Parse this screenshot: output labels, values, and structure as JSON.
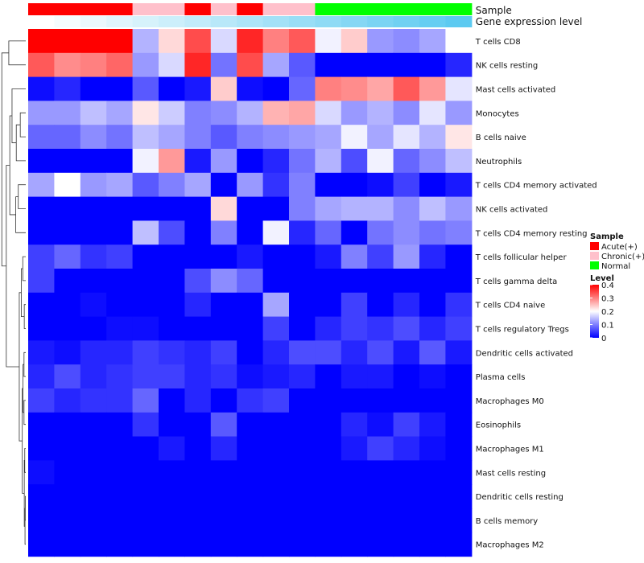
{
  "chart_data": {
    "type": "heatmap",
    "annotations": {
      "sample_label": "Sample",
      "expression_label": "Gene expression level",
      "sample_groups": [
        "Acute(+)",
        "Acute(+)",
        "Acute(+)",
        "Acute(+)",
        "Chronic(+)",
        "Chronic(+)",
        "Acute(+)",
        "Chronic(+)",
        "Acute(+)",
        "Chronic(+)",
        "Chronic(+)",
        "Normal",
        "Normal",
        "Normal",
        "Normal",
        "Normal",
        "Normal"
      ],
      "expression_levels": [
        0.0,
        0.06,
        0.12,
        0.18,
        0.24,
        0.3,
        0.36,
        0.42,
        0.48,
        0.54,
        0.6,
        0.66,
        0.72,
        0.78,
        0.84,
        0.9,
        0.96
      ]
    },
    "rows": [
      "T cells CD8",
      "NK cells resting",
      "Mast cells activated",
      "Monocytes",
      "B cells naive",
      "Neutrophils",
      "T cells CD4 memory activated",
      "NK cells activated",
      "T cells CD4 memory resting",
      "T cells follicular helper",
      "T cells gamma delta",
      "T cells CD4 naive",
      "T cells regulatory  Tregs",
      "Dendritic cells activated",
      "Plasma cells",
      "Macrophages M0",
      "Eosinophils",
      "Macrophages M1",
      "Mast cells resting",
      "Dendritic cells resting",
      "B cells memory",
      "Macrophages M2"
    ],
    "values": [
      [
        0.4,
        0.4,
        0.4,
        0.4,
        0.14,
        0.23,
        0.34,
        0.17,
        0.37,
        0.3,
        0.33,
        0.19,
        0.24,
        0.12,
        0.11,
        0.13,
        0.2
      ],
      [
        0.33,
        0.29,
        0.3,
        0.32,
        0.12,
        0.17,
        0.37,
        0.09,
        0.34,
        0.13,
        0.07,
        0.0,
        0.0,
        0.0,
        0.0,
        0.0,
        0.03
      ],
      [
        0.01,
        0.03,
        0.0,
        0.0,
        0.07,
        0.0,
        0.02,
        0.24,
        0.01,
        0.0,
        0.08,
        0.3,
        0.29,
        0.27,
        0.33,
        0.28,
        0.18
      ],
      [
        0.12,
        0.12,
        0.15,
        0.13,
        0.22,
        0.16,
        0.1,
        0.11,
        0.14,
        0.26,
        0.27,
        0.17,
        0.12,
        0.14,
        0.11,
        0.18,
        0.12
      ],
      [
        0.08,
        0.08,
        0.11,
        0.09,
        0.15,
        0.13,
        0.1,
        0.07,
        0.1,
        0.11,
        0.12,
        0.13,
        0.19,
        0.13,
        0.18,
        0.14,
        0.22
      ],
      [
        0.0,
        0.0,
        0.0,
        0.0,
        0.19,
        0.28,
        0.02,
        0.12,
        0.0,
        0.03,
        0.09,
        0.14,
        0.06,
        0.19,
        0.08,
        0.11,
        0.15
      ],
      [
        0.13,
        0.2,
        0.12,
        0.13,
        0.07,
        0.1,
        0.13,
        0.0,
        0.12,
        0.04,
        0.1,
        0.0,
        0.0,
        0.01,
        0.05,
        0.0,
        0.02
      ],
      [
        0.0,
        0.0,
        0.0,
        0.0,
        0.0,
        0.0,
        0.0,
        0.23,
        0.0,
        0.0,
        0.1,
        0.13,
        0.14,
        0.14,
        0.11,
        0.15,
        0.12
      ],
      [
        0.0,
        0.0,
        0.0,
        0.0,
        0.15,
        0.06,
        0.0,
        0.1,
        0.0,
        0.19,
        0.03,
        0.08,
        0.0,
        0.09,
        0.11,
        0.09,
        0.1
      ],
      [
        0.05,
        0.08,
        0.04,
        0.05,
        0.0,
        0.0,
        0.0,
        0.0,
        0.02,
        0.0,
        0.0,
        0.02,
        0.1,
        0.05,
        0.12,
        0.03,
        0.0
      ],
      [
        0.05,
        0.0,
        0.0,
        0.0,
        0.0,
        0.0,
        0.06,
        0.11,
        0.08,
        0.0,
        0.0,
        0.0,
        0.0,
        0.0,
        0.0,
        0.0,
        0.0
      ],
      [
        0.0,
        0.0,
        0.01,
        0.0,
        0.0,
        0.0,
        0.03,
        0.0,
        0.0,
        0.13,
        0.0,
        0.0,
        0.05,
        0.0,
        0.03,
        0.0,
        0.04
      ],
      [
        0.0,
        0.0,
        0.0,
        0.01,
        0.01,
        0.0,
        0.0,
        0.0,
        0.0,
        0.05,
        0.0,
        0.03,
        0.05,
        0.04,
        0.06,
        0.03,
        0.05
      ],
      [
        0.02,
        0.01,
        0.03,
        0.03,
        0.05,
        0.04,
        0.03,
        0.05,
        0.0,
        0.03,
        0.06,
        0.06,
        0.03,
        0.06,
        0.02,
        0.07,
        0.02
      ],
      [
        0.03,
        0.06,
        0.03,
        0.04,
        0.05,
        0.05,
        0.03,
        0.04,
        0.01,
        0.02,
        0.03,
        0.0,
        0.02,
        0.02,
        0.0,
        0.01,
        0.0
      ],
      [
        0.05,
        0.03,
        0.04,
        0.04,
        0.08,
        0.0,
        0.03,
        0.0,
        0.04,
        0.05,
        0.0,
        0.0,
        0.0,
        0.0,
        0.0,
        0.0,
        0.0
      ],
      [
        0.0,
        0.0,
        0.0,
        0.0,
        0.04,
        0.0,
        0.0,
        0.07,
        0.0,
        0.0,
        0.0,
        0.0,
        0.03,
        0.01,
        0.05,
        0.02,
        0.0
      ],
      [
        0.0,
        0.0,
        0.0,
        0.0,
        0.0,
        0.02,
        0.0,
        0.03,
        0.0,
        0.0,
        0.0,
        0.0,
        0.02,
        0.05,
        0.03,
        0.01,
        0.0
      ],
      [
        0.01,
        0.0,
        0.0,
        0.0,
        0.0,
        0.0,
        0.0,
        0.0,
        0.0,
        0.0,
        0.0,
        0.0,
        0.0,
        0.0,
        0.0,
        0.0,
        0.0
      ],
      [
        0.0,
        0.0,
        0.0,
        0.0,
        0.0,
        0.0,
        0.0,
        0.0,
        0.0,
        0.0,
        0.0,
        0.0,
        0.0,
        0.0,
        0.0,
        0.0,
        0.0
      ],
      [
        0.0,
        0.0,
        0.0,
        0.0,
        0.0,
        0.0,
        0.0,
        0.0,
        0.0,
        0.0,
        0.0,
        0.0,
        0.0,
        0.0,
        0.0,
        0.0,
        0.0
      ],
      [
        0.0,
        0.0,
        0.0,
        0.0,
        0.0,
        0.0,
        0.0,
        0.0,
        0.0,
        0.0,
        0.0,
        0.0,
        0.0,
        0.0,
        0.0,
        0.0,
        0.0
      ]
    ],
    "color_scale": {
      "min": 0,
      "max": 0.4,
      "low": "#0000ff",
      "mid": "#ffffff",
      "high": "#ff0000",
      "mid_value": 0.2
    },
    "legend": {
      "sample_title": "Sample",
      "sample_items": [
        {
          "name": "Acute(+)",
          "color": "#ff0000"
        },
        {
          "name": "Chronic(+)",
          "color": "#ffc0cb"
        },
        {
          "name": "Normal",
          "color": "#00ff00"
        }
      ],
      "level_title": "Level",
      "level_ticks": [
        {
          "label": "0.4",
          "value": 0.4
        },
        {
          "label": "0.3",
          "value": 0.3
        },
        {
          "label": "0.2",
          "value": 0.2
        },
        {
          "label": "0.1",
          "value": 0.1
        },
        {
          "label": "0",
          "value": 0
        }
      ],
      "expression_color_low": "#ffffff",
      "expression_color_high": "#55c8f0"
    },
    "dendrogram": "row"
  }
}
